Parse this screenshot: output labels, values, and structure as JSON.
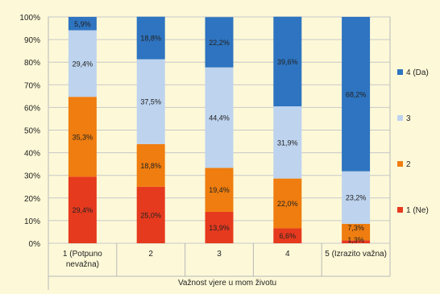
{
  "chart_data": {
    "type": "bar",
    "stacked": true,
    "percent": true,
    "title": "",
    "xlabel": "Važnost vjere u mom životu",
    "ylabel": "",
    "ylim": [
      0,
      100
    ],
    "yticks": [
      "0%",
      "10%",
      "20%",
      "30%",
      "40%",
      "50%",
      "60%",
      "70%",
      "80%",
      "90%",
      "100%"
    ],
    "categories": [
      [
        "1 (Potpuno",
        "nevažna)"
      ],
      [
        "2"
      ],
      [
        "3"
      ],
      [
        "4"
      ],
      [
        "5 (Izrazito važna)"
      ]
    ],
    "grid": true,
    "legend_position": "right",
    "series": [
      {
        "name": "1 (Ne)",
        "color": "#e63a1e",
        "values": [
          29.4,
          25.0,
          13.9,
          6.6,
          1.3
        ],
        "labels": [
          "29,4%",
          "25,0%",
          "13,9%",
          "6,6%",
          "1,3%"
        ]
      },
      {
        "name": "2",
        "color": "#ef7d0f",
        "values": [
          35.3,
          18.8,
          19.4,
          22.0,
          7.3
        ],
        "labels": [
          "35,3%",
          "18,8%",
          "19,4%",
          "22,0%",
          "7,3%"
        ]
      },
      {
        "name": "3",
        "color": "#bdd3ee",
        "values": [
          29.4,
          37.5,
          44.4,
          31.9,
          23.2
        ],
        "labels": [
          "29,4%",
          "37,5%",
          "44,4%",
          "31,9%",
          "23,2%"
        ]
      },
      {
        "name": "4 (Da)",
        "color": "#2e74c0",
        "values": [
          5.9,
          18.8,
          22.2,
          39.6,
          68.2
        ],
        "labels": [
          "5,9%",
          "18,8%",
          "22,2%",
          "39,6%",
          "68,2%"
        ]
      }
    ]
  }
}
